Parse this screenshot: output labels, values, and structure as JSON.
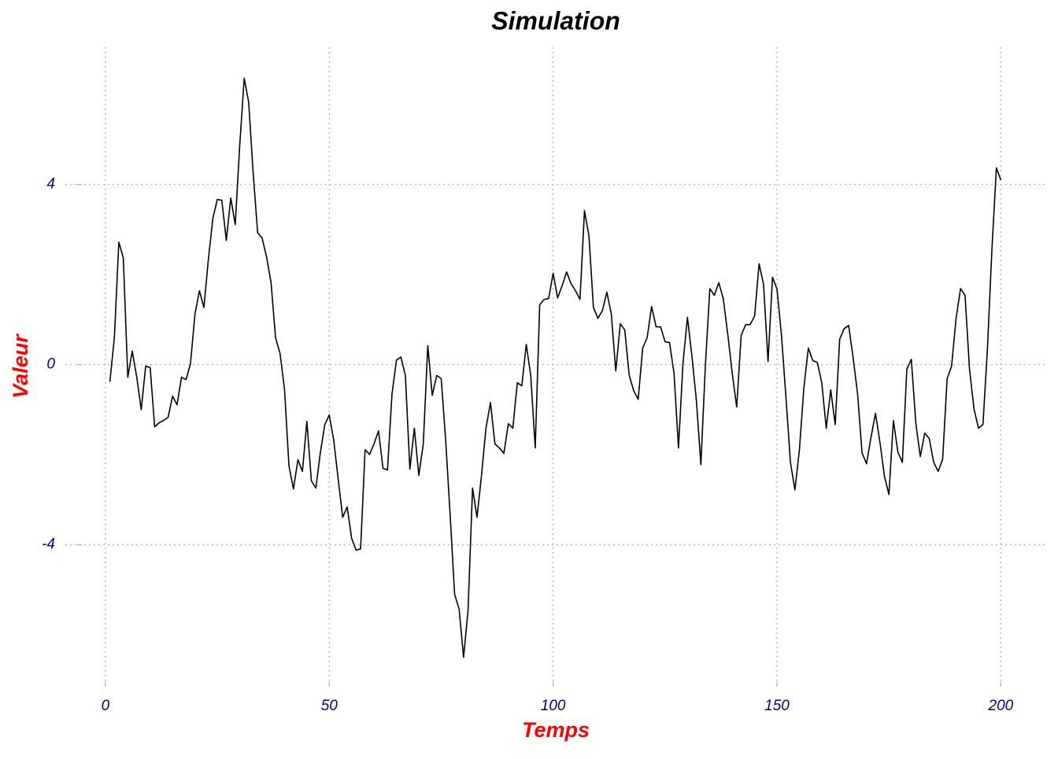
{
  "chart_data": {
    "type": "line",
    "title": "Simulation",
    "x_label": "Temps",
    "y_label": "Valeur",
    "x": [
      1,
      2,
      3,
      4,
      5,
      6,
      7,
      8,
      9,
      10,
      11,
      12,
      13,
      14,
      15,
      16,
      17,
      18,
      19,
      20,
      21,
      22,
      23,
      24,
      25,
      26,
      27,
      28,
      29,
      30,
      31,
      32,
      33,
      34,
      35,
      36,
      37,
      38,
      39,
      40,
      41,
      42,
      43,
      44,
      45,
      46,
      47,
      48,
      49,
      50,
      51,
      52,
      53,
      54,
      55,
      56,
      57,
      58,
      59,
      60,
      61,
      62,
      63,
      64,
      65,
      66,
      67,
      68,
      69,
      70,
      71,
      72,
      73,
      74,
      75,
      76,
      77,
      78,
      79,
      80,
      81,
      82,
      83,
      84,
      85,
      86,
      87,
      88,
      89,
      90,
      91,
      92,
      93,
      94,
      95,
      96,
      97,
      98,
      99,
      100,
      101,
      102,
      103,
      104,
      105,
      106,
      107,
      108,
      109,
      110,
      111,
      112,
      113,
      114,
      115,
      116,
      117,
      118,
      119,
      120,
      121,
      122,
      123,
      124,
      125,
      126,
      127,
      128,
      129,
      130,
      131,
      132,
      133,
      134,
      135,
      136,
      137,
      138,
      139,
      140,
      141,
      142,
      143,
      144,
      145,
      146,
      147,
      148,
      149,
      150,
      151,
      152,
      153,
      154,
      155,
      156,
      157,
      158,
      159,
      160,
      161,
      162,
      163,
      164,
      165,
      166,
      167,
      168,
      169,
      170,
      171,
      172,
      173,
      174,
      175,
      176,
      177,
      178,
      179,
      180,
      181,
      182,
      183,
      184,
      185,
      186,
      187,
      188,
      189,
      190,
      191,
      192,
      193,
      194,
      195,
      196,
      197,
      198,
      199,
      200
    ],
    "values": [
      -0.38,
      0.6,
      2.72,
      2.37,
      -0.28,
      0.3,
      -0.28,
      -1.0,
      -0.03,
      -0.07,
      -1.38,
      -1.29,
      -1.24,
      -1.17,
      -0.7,
      -0.89,
      -0.28,
      -0.33,
      0.02,
      1.12,
      1.64,
      1.27,
      2.34,
      3.25,
      3.67,
      3.65,
      2.76,
      3.7,
      3.11,
      4.87,
      6.36,
      5.83,
      4.26,
      2.93,
      2.81,
      2.39,
      1.82,
      0.6,
      0.25,
      -0.54,
      -2.25,
      -2.76,
      -2.11,
      -2.37,
      -1.26,
      -2.58,
      -2.74,
      -1.96,
      -1.33,
      -1.12,
      -1.68,
      -2.55,
      -3.39,
      -3.16,
      -3.86,
      -4.12,
      -4.09,
      -1.89,
      -1.99,
      -1.76,
      -1.47,
      -2.3,
      -2.34,
      -0.66,
      0.1,
      0.17,
      -0.24,
      -2.32,
      -1.41,
      -2.46,
      -1.76,
      0.42,
      -0.68,
      -0.24,
      -0.31,
      -1.68,
      -3.34,
      -5.1,
      -5.43,
      -6.5,
      -5.45,
      -2.74,
      -3.39,
      -2.46,
      -1.41,
      -0.84,
      -1.76,
      -1.85,
      -1.97,
      -1.31,
      -1.41,
      -0.4,
      -0.47,
      0.45,
      -0.24,
      -1.85,
      1.33,
      1.45,
      1.47,
      2.03,
      1.48,
      1.75,
      2.06,
      1.8,
      1.64,
      1.45,
      3.42,
      2.86,
      1.27,
      1.03,
      1.2,
      1.61,
      1.12,
      -0.14,
      0.91,
      0.77,
      -0.24,
      -0.58,
      -0.77,
      0.37,
      0.6,
      1.29,
      0.84,
      0.84,
      0.51,
      0.49,
      -0.19,
      -1.85,
      0.03,
      1.05,
      0.19,
      -0.8,
      -2.22,
      -0.03,
      1.69,
      1.54,
      1.82,
      1.47,
      0.68,
      -0.19,
      -0.94,
      0.65,
      0.89,
      0.89,
      1.08,
      2.24,
      1.78,
      0.07,
      1.94,
      1.68,
      0.65,
      -0.72,
      -2.17,
      -2.78,
      -1.9,
      -0.52,
      0.37,
      0.09,
      0.05,
      -0.4,
      -1.41,
      -0.56,
      -1.33,
      0.56,
      0.8,
      0.87,
      0.16,
      -0.65,
      -1.96,
      -2.2,
      -1.61,
      -1.08,
      -1.73,
      -2.48,
      -2.88,
      -1.24,
      -1.94,
      -2.17,
      -0.1,
      0.12,
      -1.29,
      -2.04,
      -1.52,
      -1.64,
      -2.17,
      -2.37,
      -2.1,
      -0.31,
      -0.03,
      1.03,
      1.69,
      1.54,
      -0.1,
      -0.98,
      -1.41,
      -1.33,
      0.35,
      2.55,
      4.37,
      4.1
    ],
    "color": "#000000",
    "xlim": [
      -8.95,
      209.95
    ],
    "xticks": [
      0,
      50,
      100,
      150,
      200
    ],
    "ylim": [
      -7.15,
      7.05
    ],
    "yticks": [
      -4,
      0,
      4
    ],
    "grid": true
  }
}
